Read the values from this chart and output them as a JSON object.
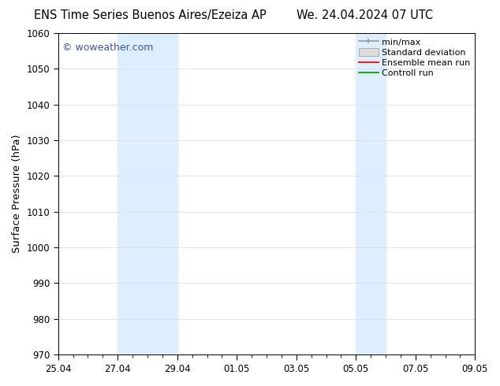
{
  "title_left": "ENS Time Series Buenos Aires/Ezeiza AP",
  "title_right": "We. 24.04.2024 07 UTC",
  "ylabel": "Surface Pressure (hPa)",
  "ylim": [
    970,
    1060
  ],
  "yticks": [
    970,
    980,
    990,
    1000,
    1010,
    1020,
    1030,
    1040,
    1050,
    1060
  ],
  "xtick_labels": [
    "25.04",
    "27.04",
    "29.04",
    "01.05",
    "03.05",
    "05.05",
    "07.05",
    "09.05"
  ],
  "xtick_positions": [
    0,
    2,
    4,
    6,
    8,
    10,
    12,
    14
  ],
  "xlim": [
    0,
    14
  ],
  "shaded_bands": [
    {
      "start": 2,
      "end": 4
    },
    {
      "start": 10,
      "end": 11
    }
  ],
  "watermark_text": "© woweather.com",
  "watermark_color": "#3355bb",
  "legend_labels": [
    "min/max",
    "Standard deviation",
    "Ensemble mean run",
    "Controll run"
  ],
  "legend_colors_line": [
    "#999999",
    "#cccccc",
    "#ff0000",
    "#00aa00"
  ],
  "shaded_color": "#ddeeff",
  "background_color": "#ffffff",
  "grid_color": "#dddddd",
  "title_fontsize": 10.5,
  "tick_fontsize": 8.5,
  "ylabel_fontsize": 9.5,
  "legend_fontsize": 8,
  "watermark_fontsize": 9
}
